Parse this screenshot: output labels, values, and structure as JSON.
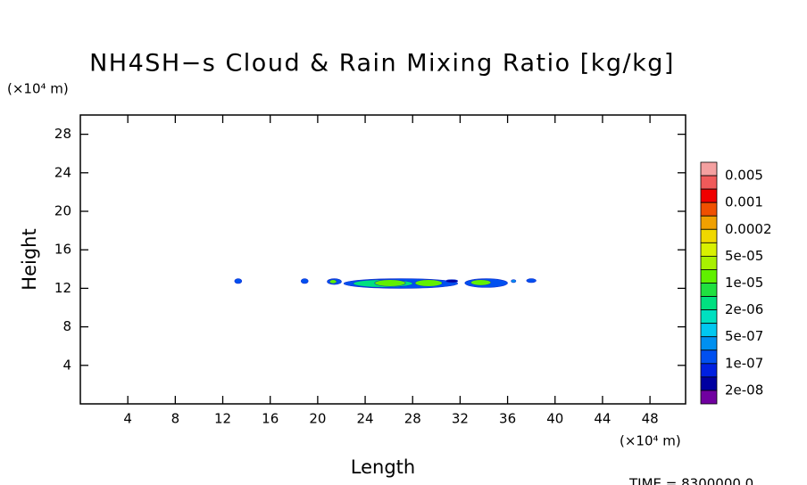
{
  "chart_data": {
    "type": "contour",
    "title": "NH4SH−s Cloud & Rain Mixing Ratio [kg/kg]",
    "x_label": "Length",
    "y_label": "Height",
    "x_unit": "(×10⁴ m)",
    "y_unit": "(×10⁴ m)",
    "time_label": "TIME = 8300000.0",
    "xlim": [
      0,
      51
    ],
    "ylim": [
      0,
      30
    ],
    "xticks": [
      4,
      8,
      12,
      16,
      20,
      24,
      28,
      32,
      36,
      40,
      44,
      48
    ],
    "yticks": [
      4,
      8,
      12,
      16,
      20,
      24,
      28
    ],
    "colorbar": {
      "colors": [
        "#f4a0a0",
        "#f05a5a",
        "#f00000",
        "#f05000",
        "#f0a000",
        "#f0d800",
        "#d8f000",
        "#a8f000",
        "#60f000",
        "#20e040",
        "#00e080",
        "#00e0c0",
        "#00c8f0",
        "#0090f0",
        "#0050f0",
        "#0020e0",
        "#0000a0",
        "#7000a0"
      ],
      "labels": [
        "0.005",
        "0.001",
        "0.0002",
        "5e-05",
        "1e-05",
        "2e-06",
        "5e-07",
        "1e-07",
        "2e-08"
      ]
    },
    "regions": [
      {
        "x": [
          13.0,
          13.6
        ],
        "y": [
          12.5,
          13.0
        ],
        "level": 14
      },
      {
        "x": [
          18.6,
          19.2
        ],
        "y": [
          12.5,
          13.0
        ],
        "level": 14
      },
      {
        "x": [
          20.8,
          22.0
        ],
        "y": [
          12.4,
          13.0
        ],
        "level": 14
      },
      {
        "x": [
          21.0,
          21.6
        ],
        "y": [
          12.5,
          12.9
        ],
        "level": 8
      },
      {
        "x": [
          22.2,
          31.8
        ],
        "y": [
          12.0,
          13.0
        ],
        "level": 14
      },
      {
        "x": [
          23.0,
          28.0
        ],
        "y": [
          12.1,
          12.9
        ],
        "level": 10
      },
      {
        "x": [
          24.8,
          27.4
        ],
        "y": [
          12.2,
          12.9
        ],
        "level": 8
      },
      {
        "x": [
          28.2,
          30.5
        ],
        "y": [
          12.2,
          12.9
        ],
        "level": 8
      },
      {
        "x": [
          30.8,
          31.8
        ],
        "y": [
          12.6,
          12.9
        ],
        "level": 16
      },
      {
        "x": [
          32.4,
          36.0
        ],
        "y": [
          12.1,
          13.0
        ],
        "level": 14
      },
      {
        "x": [
          32.9,
          34.6
        ],
        "y": [
          12.3,
          12.9
        ],
        "level": 8
      },
      {
        "x": [
          36.3,
          36.7
        ],
        "y": [
          12.6,
          12.9
        ],
        "level": 13
      },
      {
        "x": [
          37.6,
          38.4
        ],
        "y": [
          12.6,
          13.0
        ],
        "level": 14
      }
    ]
  }
}
